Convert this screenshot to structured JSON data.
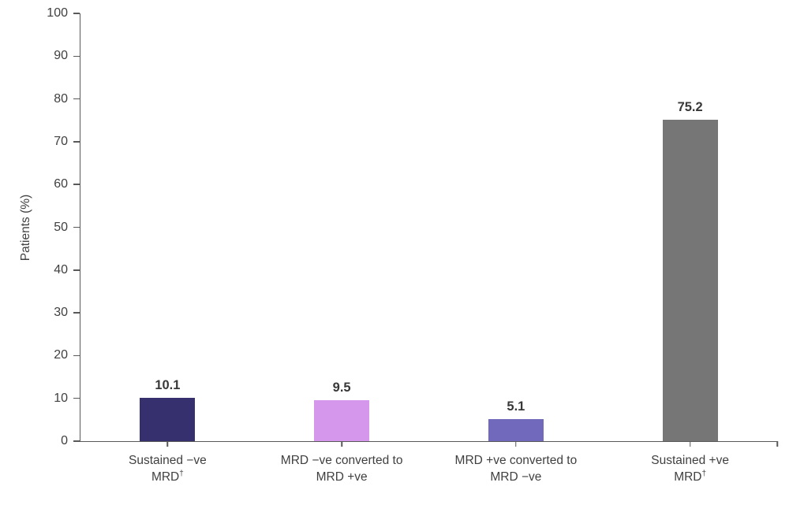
{
  "chart_data": {
    "type": "bar",
    "title": "",
    "xlabel": "",
    "ylabel": "Patients (%)",
    "ylim": [
      0,
      100
    ],
    "ytick_step": 10,
    "yticks": [
      0,
      10,
      20,
      30,
      40,
      50,
      60,
      70,
      80,
      90,
      100
    ],
    "grid": false,
    "legend": null,
    "categories": [
      "Sustained −ve MRD†",
      "MRD −ve converted to MRD +ve",
      "MRD +ve converted to MRD −ve",
      "Sustained +ve MRD†"
    ],
    "values": [
      10.1,
      9.5,
      5.1,
      75.2
    ],
    "value_labels": [
      "10.1",
      "9.5",
      "5.1",
      "75.2"
    ],
    "bar_colors": [
      "#36316E",
      "#D497EC",
      "#7169BC",
      "#767676"
    ],
    "category_label_lines": [
      {
        "line1": "Sustained −ve",
        "line2": "MRD",
        "sup": "†"
      },
      {
        "line1": "MRD −ve converted to",
        "line2": "MRD +ve",
        "sup": ""
      },
      {
        "line1": "MRD +ve converted to",
        "line2": "MRD −ve",
        "sup": ""
      },
      {
        "line1": "Sustained +ve",
        "line2": "MRD",
        "sup": "†"
      }
    ]
  },
  "colors": {
    "axis": "#595959",
    "tick_text": "#404040",
    "value_text": "#383838",
    "background": "#ffffff"
  }
}
